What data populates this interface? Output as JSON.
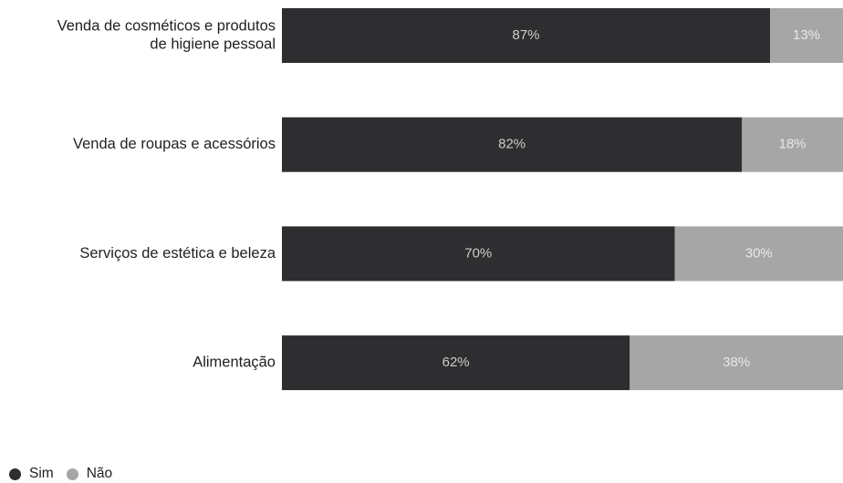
{
  "colors": {
    "sim": "#2e2e30",
    "nao": "#a6a6a6"
  },
  "legend": {
    "sim_label": "Sim",
    "nao_label": "Não"
  },
  "chart_data": {
    "type": "bar",
    "orientation": "horizontal",
    "stacked": true,
    "categories": [
      [
        "Venda de cosméticos e produtos",
        "de higiene pessoal"
      ],
      [
        "Venda de roupas e acessórios"
      ],
      [
        "Serviços de estética e beleza"
      ],
      [
        "Alimentação"
      ]
    ],
    "series": [
      {
        "name": "Sim",
        "values": [
          87,
          82,
          70,
          62
        ],
        "labels": [
          "87%",
          "82%",
          "70%",
          "62%"
        ]
      },
      {
        "name": "Não",
        "values": [
          13,
          18,
          30,
          38
        ],
        "labels": [
          "13%",
          "18%",
          "30%",
          "38%"
        ]
      }
    ],
    "xlim": [
      0,
      100
    ],
    "grid": false,
    "legend_position": "bottom-left"
  }
}
